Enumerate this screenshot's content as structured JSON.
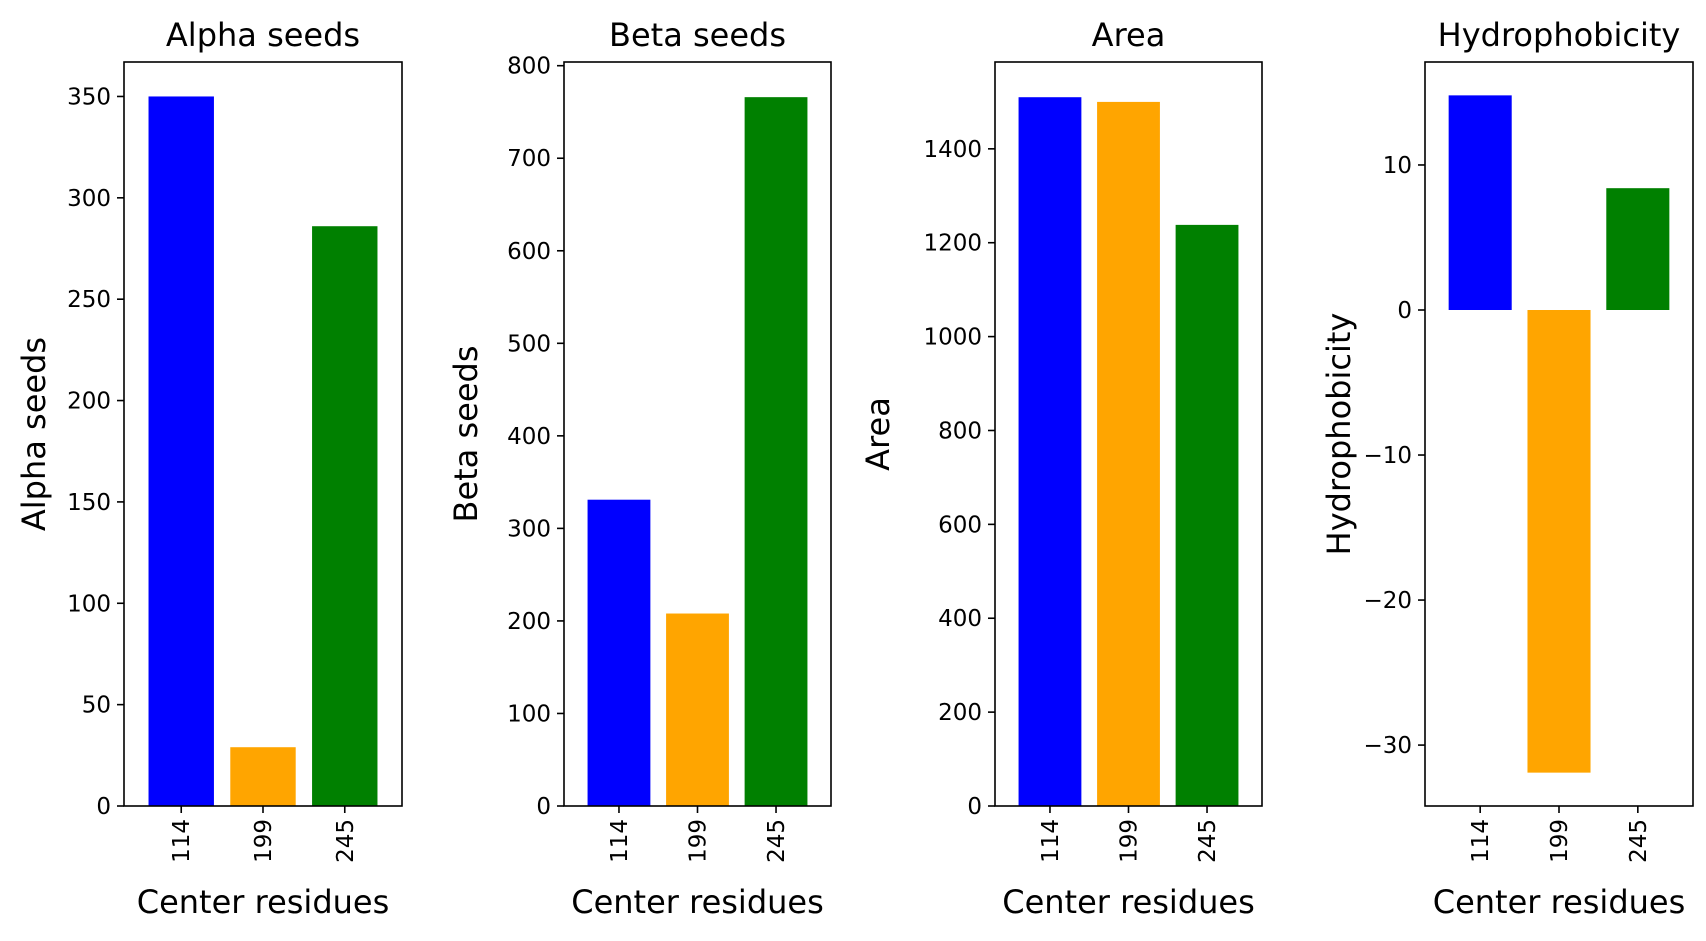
{
  "chart_data": [
    {
      "type": "bar",
      "title": "Alpha seeds",
      "xlabel": "Center residues",
      "ylabel": "Alpha seeds",
      "categories": [
        "114",
        "199",
        "245"
      ],
      "values": [
        350,
        29,
        286
      ],
      "colors": [
        "#0000ff",
        "#ffa500",
        "#008000"
      ],
      "ylim": [
        0,
        367
      ],
      "yticks": [
        0,
        50,
        100,
        150,
        200,
        250,
        300,
        350
      ],
      "ytick_labels": [
        "0",
        "50",
        "100",
        "150",
        "200",
        "250",
        "300",
        "350"
      ]
    },
    {
      "type": "bar",
      "title": "Beta seeds",
      "xlabel": "Center residues",
      "ylabel": "Beta seeds",
      "categories": [
        "114",
        "199",
        "245"
      ],
      "values": [
        331,
        208,
        766
      ],
      "colors": [
        "#0000ff",
        "#ffa500",
        "#008000"
      ],
      "ylim": [
        0,
        804
      ],
      "yticks": [
        0,
        100,
        200,
        300,
        400,
        500,
        600,
        700,
        800
      ],
      "ytick_labels": [
        "0",
        "100",
        "200",
        "300",
        "400",
        "500",
        "600",
        "700",
        "800"
      ]
    },
    {
      "type": "bar",
      "title": "Area",
      "xlabel": "Center residues",
      "ylabel": "Area",
      "categories": [
        "114",
        "199",
        "245"
      ],
      "values": [
        1510,
        1500,
        1238
      ],
      "colors": [
        "#0000ff",
        "#ffa500",
        "#008000"
      ],
      "ylim": [
        0,
        1585
      ],
      "yticks": [
        0,
        200,
        400,
        600,
        800,
        1000,
        1200,
        1400
      ],
      "ytick_labels": [
        "0",
        "200",
        "400",
        "600",
        "800",
        "1000",
        "1200",
        "1400"
      ]
    },
    {
      "type": "bar",
      "title": "Hydrophobicity",
      "xlabel": "Center residues",
      "ylabel": "Hydrophobicity",
      "categories": [
        "114",
        "199",
        "245"
      ],
      "values": [
        14.8,
        -31.9,
        8.4
      ],
      "colors": [
        "#0000ff",
        "#ffa500",
        "#008000"
      ],
      "ylim": [
        -34.2,
        17.1
      ],
      "yticks": [
        -30,
        -20,
        -10,
        0,
        10
      ],
      "ytick_labels": [
        "−30",
        "−20",
        "−10",
        "0",
        "10"
      ]
    }
  ]
}
